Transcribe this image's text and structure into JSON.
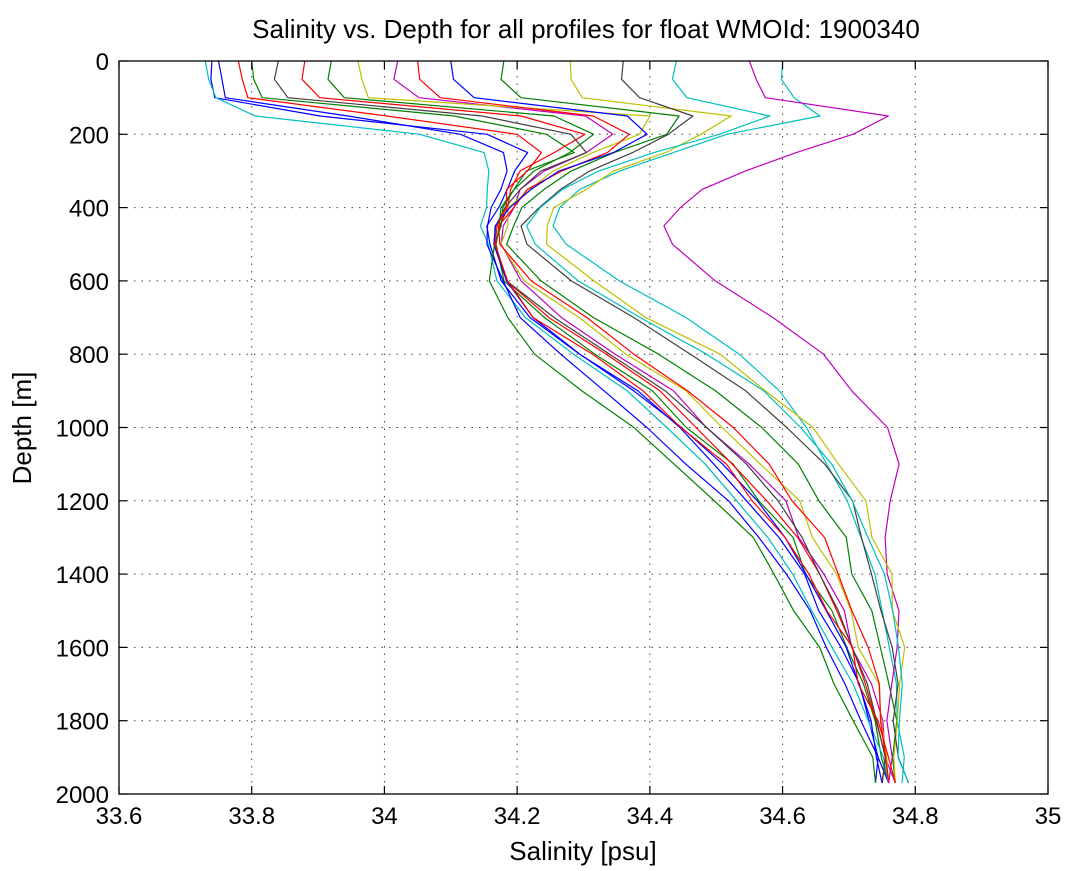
{
  "chart_data": {
    "type": "line",
    "title": "Salinity vs. Depth for all profiles for float WMOId: 1900340",
    "xlabel": "Salinity [psu]",
    "ylabel": "Depth [m]",
    "xlim": [
      33.6,
      35.0
    ],
    "ylim": [
      0,
      2000
    ],
    "y_reversed": true,
    "grid": true,
    "legend": "none",
    "x_ticks": [
      "33.6",
      "33.8",
      "34",
      "34.2",
      "34.4",
      "34.6",
      "34.8",
      "35"
    ],
    "y_ticks": [
      "0",
      "200",
      "400",
      "600",
      "800",
      "1000",
      "1200",
      "1400",
      "1600",
      "1800",
      "2000"
    ],
    "x_tick_values": [
      33.6,
      33.8,
      34.0,
      34.2,
      34.4,
      34.6,
      34.8,
      35.0
    ],
    "y_tick_values": [
      0,
      200,
      400,
      600,
      800,
      1000,
      1200,
      1400,
      1600,
      1800,
      2000
    ],
    "profile_depths": [
      0,
      50,
      100,
      150,
      200,
      250,
      300,
      350,
      400,
      450,
      500,
      600,
      700,
      800,
      900,
      1000,
      1100,
      1200,
      1300,
      1400,
      1500,
      1600,
      1700,
      1800,
      1900,
      1970
    ],
    "colors": [
      "#0000ff",
      "#008000",
      "#ff0000",
      "#00bfbf",
      "#bf00bf",
      "#bfbf00",
      "#404040"
    ],
    "series": [
      {
        "values": [
          33.74,
          33.74,
          33.75,
          33.9,
          34.15,
          34.22,
          34.2,
          34.18,
          34.17,
          34.16,
          34.16,
          34.17,
          34.22,
          34.3,
          34.38,
          34.44,
          34.5,
          34.55,
          34.59,
          34.63,
          34.66,
          34.69,
          34.71,
          34.73,
          34.75,
          34.76
        ]
      },
      {
        "values": [
          33.8,
          33.8,
          33.82,
          34.1,
          34.25,
          34.28,
          34.22,
          34.19,
          34.18,
          34.17,
          34.17,
          34.18,
          34.24,
          34.32,
          34.4,
          34.46,
          34.52,
          34.57,
          34.61,
          34.64,
          34.67,
          34.7,
          34.72,
          34.74,
          34.75,
          34.76
        ]
      },
      {
        "values": [
          33.88,
          33.88,
          33.9,
          34.2,
          34.3,
          34.26,
          34.21,
          34.19,
          34.18,
          34.17,
          34.17,
          34.19,
          34.25,
          34.33,
          34.41,
          34.47,
          34.53,
          34.58,
          34.62,
          34.65,
          34.68,
          34.71,
          34.73,
          34.74,
          34.75,
          34.75
        ]
      },
      {
        "values": [
          33.73,
          33.73,
          33.74,
          33.8,
          34.05,
          34.15,
          34.16,
          34.16,
          34.16,
          34.15,
          34.16,
          34.17,
          34.21,
          34.28,
          34.36,
          34.42,
          34.48,
          34.53,
          34.58,
          34.62,
          34.65,
          34.68,
          34.71,
          34.73,
          34.75,
          34.76
        ]
      },
      {
        "values": [
          34.02,
          34.02,
          34.05,
          34.3,
          34.35,
          34.3,
          34.24,
          34.21,
          34.19,
          34.18,
          34.18,
          34.2,
          34.27,
          34.35,
          34.43,
          34.49,
          34.55,
          34.6,
          34.63,
          34.66,
          34.69,
          34.71,
          34.73,
          34.75,
          34.76,
          34.77
        ]
      },
      {
        "values": [
          33.96,
          33.96,
          33.98,
          34.4,
          34.38,
          34.32,
          34.25,
          34.22,
          34.19,
          34.18,
          34.18,
          34.21,
          34.29,
          34.37,
          34.45,
          34.51,
          34.57,
          34.62,
          34.65,
          34.68,
          34.7,
          34.72,
          34.74,
          34.75,
          34.76,
          34.76
        ]
      },
      {
        "values": [
          33.84,
          33.84,
          33.86,
          34.15,
          34.28,
          34.3,
          34.23,
          34.2,
          34.18,
          34.17,
          34.17,
          34.19,
          34.26,
          34.34,
          34.42,
          34.48,
          34.54,
          34.59,
          34.63,
          34.66,
          34.69,
          34.71,
          34.73,
          34.74,
          34.75,
          34.75
        ]
      },
      {
        "values": [
          33.75,
          33.75,
          33.76,
          33.95,
          34.12,
          34.18,
          34.18,
          34.17,
          34.16,
          34.16,
          34.16,
          34.18,
          34.2,
          34.26,
          34.33,
          34.4,
          34.46,
          34.52,
          34.56,
          34.6,
          34.64,
          34.67,
          34.7,
          34.72,
          34.74,
          34.74
        ]
      },
      {
        "values": [
          34.18,
          34.18,
          34.2,
          34.45,
          34.42,
          34.35,
          34.28,
          34.24,
          34.21,
          34.19,
          34.19,
          34.23,
          34.32,
          34.41,
          34.5,
          34.57,
          34.62,
          34.66,
          34.69,
          34.71,
          34.73,
          34.75,
          34.76,
          34.77,
          34.77,
          34.77
        ]
      },
      {
        "values": [
          34.05,
          34.05,
          34.08,
          34.32,
          34.37,
          34.33,
          34.27,
          34.22,
          34.19,
          34.17,
          34.18,
          34.22,
          34.3,
          34.38,
          34.46,
          34.52,
          34.58,
          34.62,
          34.66,
          34.68,
          34.71,
          34.73,
          34.74,
          34.75,
          34.76,
          34.76
        ]
      },
      {
        "values": [
          34.6,
          34.6,
          34.62,
          34.66,
          34.52,
          34.44,
          34.36,
          34.3,
          34.27,
          34.26,
          34.28,
          34.36,
          34.46,
          34.54,
          34.6,
          34.64,
          34.67,
          34.7,
          34.72,
          34.74,
          34.75,
          34.76,
          34.77,
          34.77,
          34.78,
          34.78
        ]
      },
      {
        "values": [
          34.55,
          34.56,
          34.58,
          34.76,
          34.7,
          34.62,
          34.55,
          34.48,
          34.44,
          34.42,
          34.44,
          34.5,
          34.58,
          34.66,
          34.71,
          34.76,
          34.77,
          34.76,
          34.76,
          34.76,
          34.77,
          34.77,
          34.77,
          34.76,
          34.76,
          34.76
        ]
      },
      {
        "values": [
          34.28,
          34.28,
          34.3,
          34.52,
          34.48,
          34.42,
          34.35,
          34.3,
          34.26,
          34.24,
          34.25,
          34.31,
          34.4,
          34.5,
          34.58,
          34.64,
          34.69,
          34.72,
          34.74,
          34.76,
          34.77,
          34.78,
          34.78,
          34.77,
          34.77,
          34.77
        ]
      },
      {
        "values": [
          34.36,
          34.36,
          34.38,
          34.46,
          34.43,
          34.38,
          34.31,
          34.26,
          34.23,
          34.21,
          34.22,
          34.28,
          34.37,
          34.46,
          34.55,
          34.61,
          34.66,
          34.7,
          34.72,
          34.74,
          34.75,
          34.76,
          34.77,
          34.77,
          34.78,
          34.79
        ]
      },
      {
        "values": [
          34.1,
          34.1,
          34.13,
          34.36,
          34.39,
          34.34,
          34.26,
          34.22,
          34.19,
          34.17,
          34.17,
          34.19,
          34.23,
          34.3,
          34.38,
          34.45,
          34.51,
          34.56,
          34.6,
          34.63,
          34.66,
          34.69,
          34.71,
          34.73,
          34.74,
          34.75
        ]
      },
      {
        "values": [
          33.92,
          33.92,
          33.94,
          34.25,
          34.32,
          34.28,
          34.22,
          34.2,
          34.18,
          34.17,
          34.17,
          34.16,
          34.18,
          34.23,
          34.3,
          34.37,
          34.44,
          34.5,
          34.55,
          34.59,
          34.62,
          34.65,
          34.68,
          34.71,
          34.73,
          34.74
        ]
      },
      {
        "values": [
          33.78,
          33.78,
          33.8,
          34.0,
          34.2,
          34.24,
          34.21,
          34.19,
          34.18,
          34.17,
          34.17,
          34.18,
          34.23,
          34.31,
          34.39,
          34.45,
          34.51,
          34.56,
          34.6,
          34.64,
          34.67,
          34.7,
          34.72,
          34.74,
          34.76,
          34.77
        ]
      },
      {
        "values": [
          34.44,
          34.44,
          34.46,
          34.58,
          34.5,
          34.4,
          34.32,
          34.27,
          34.24,
          34.22,
          34.23,
          34.29,
          34.38,
          34.48,
          34.57,
          34.63,
          34.68,
          34.71,
          34.73,
          34.75,
          34.76,
          34.77,
          34.78,
          34.78,
          34.78,
          34.79
        ]
      }
    ]
  }
}
